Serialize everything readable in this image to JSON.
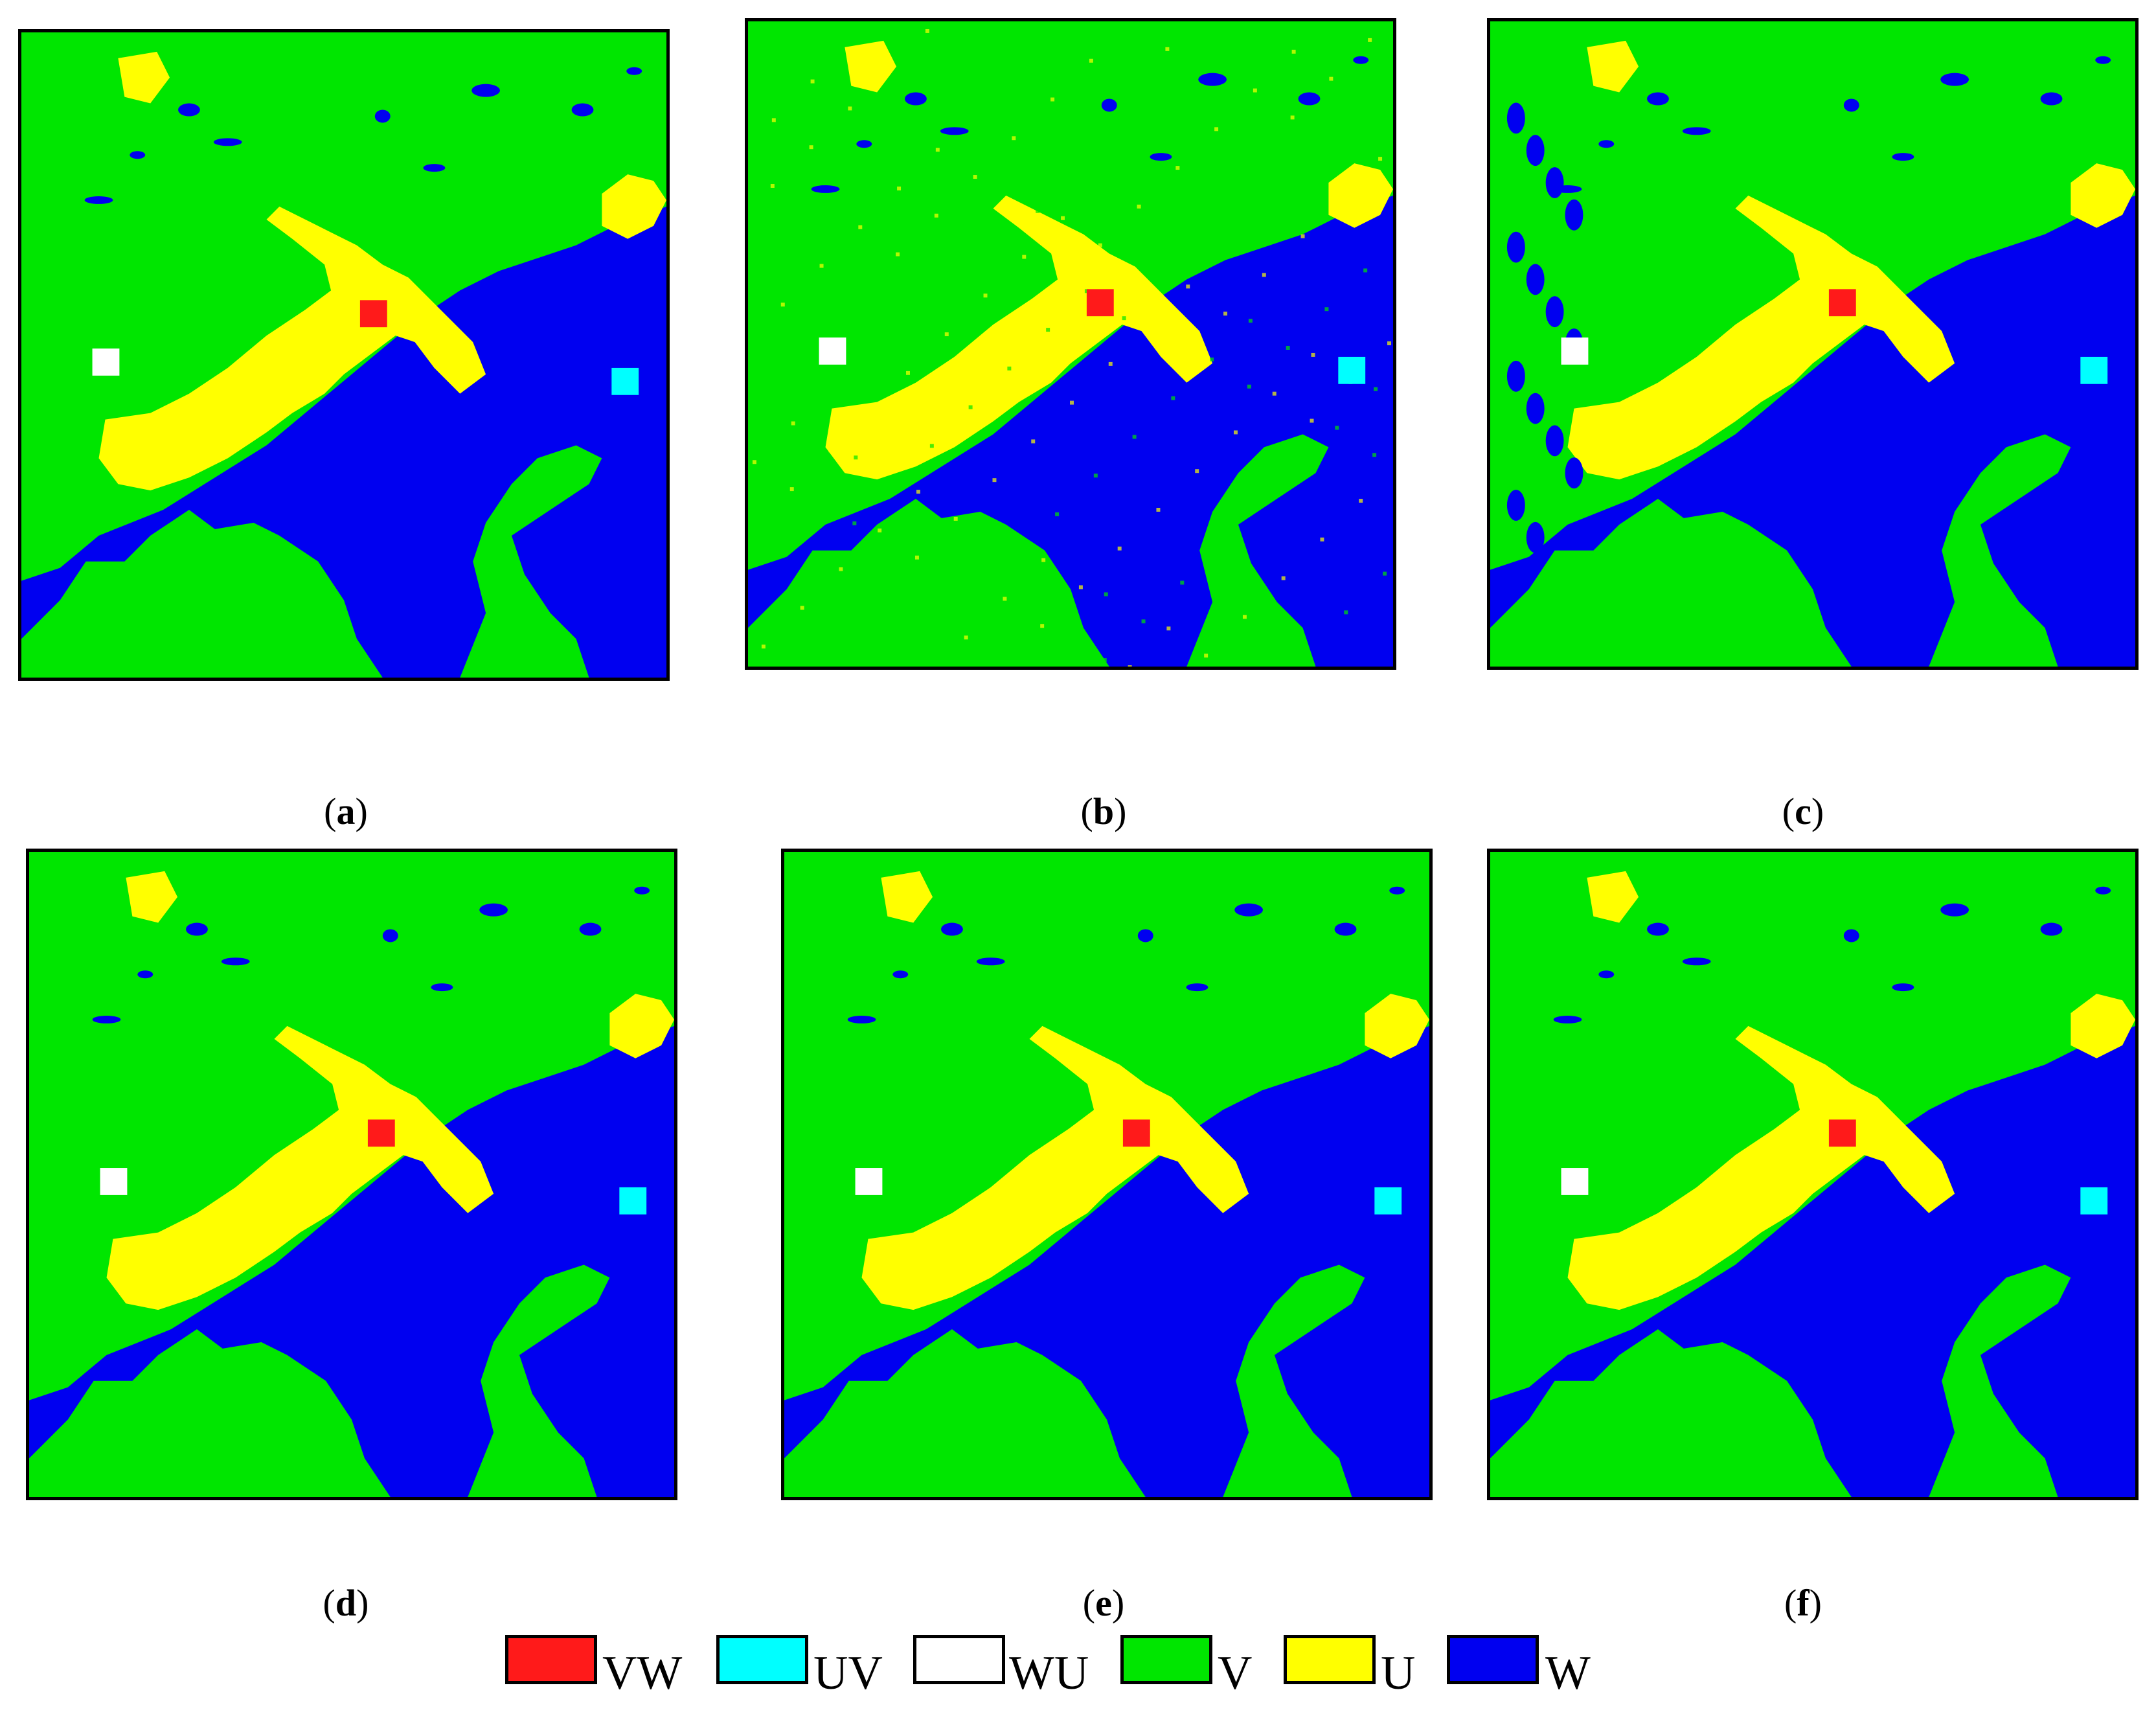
{
  "panels": [
    {
      "id": "a",
      "caption": "a"
    },
    {
      "id": "b",
      "caption": "b"
    },
    {
      "id": "c",
      "caption": "c"
    },
    {
      "id": "d",
      "caption": "d"
    },
    {
      "id": "e",
      "caption": "e"
    },
    {
      "id": "f",
      "caption": "f"
    }
  ],
  "legend": [
    {
      "label": "VW",
      "color": "#ff1a1a"
    },
    {
      "label": "UV",
      "color": "#00ffff"
    },
    {
      "label": "WU",
      "color": "#ffffff"
    },
    {
      "label": "V",
      "color": "#00e600"
    },
    {
      "label": "U",
      "color": "#ffff00"
    },
    {
      "label": "W",
      "color": "#0000f0"
    }
  ]
}
